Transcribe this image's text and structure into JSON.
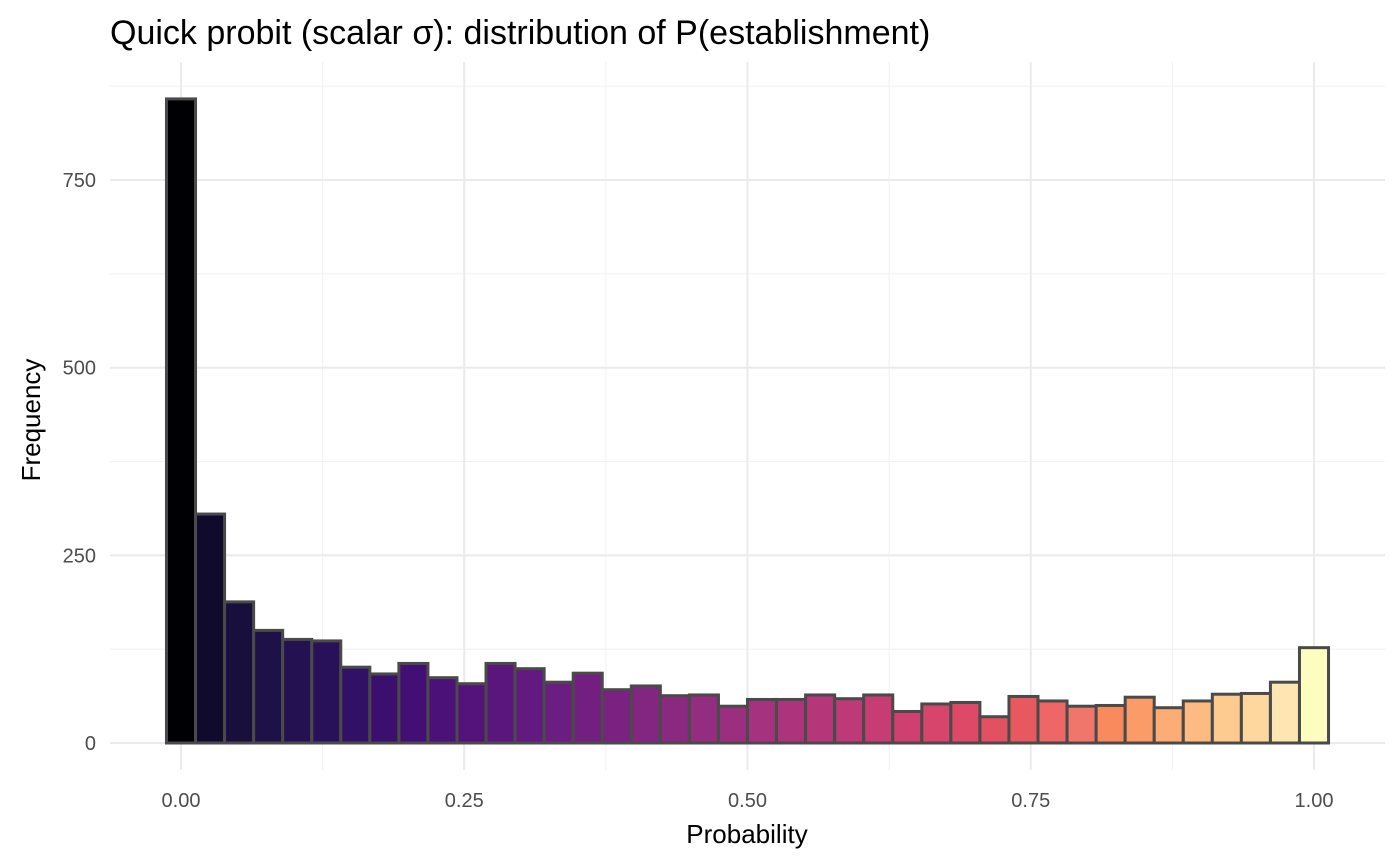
{
  "chart_data": {
    "type": "bar",
    "title": "Quick probit (scalar σ): distribution of P(establishment)",
    "xlabel": "Probability",
    "ylabel": "Frequency",
    "xlim": [
      -0.025,
      1.025
    ],
    "ylim": [
      0,
      875
    ],
    "x_ticks": [
      0,
      0.25,
      0.5,
      0.75,
      1.0
    ],
    "x_tick_labels": [
      "0.00",
      "0.25",
      "0.50",
      "0.75",
      "1.00"
    ],
    "y_ticks": [
      0,
      250,
      500,
      750
    ],
    "y_tick_labels": [
      "0",
      "250",
      "500",
      "750"
    ],
    "bin_width": 0.025641,
    "bin_centers": [
      0.0,
      0.025641,
      0.051282,
      0.076923,
      0.102564,
      0.128205,
      0.153846,
      0.179487,
      0.205128,
      0.230769,
      0.25641,
      0.282051,
      0.307692,
      0.333333,
      0.358974,
      0.384615,
      0.410256,
      0.435897,
      0.461538,
      0.487179,
      0.512821,
      0.538462,
      0.564103,
      0.589744,
      0.615385,
      0.641026,
      0.666667,
      0.692308,
      0.717949,
      0.74359,
      0.769231,
      0.794872,
      0.820513,
      0.846154,
      0.871795,
      0.897436,
      0.923077,
      0.948718,
      0.974359,
      1.0
    ],
    "values": [
      858,
      305,
      188,
      150,
      138,
      136,
      101,
      92,
      106,
      87,
      79,
      106,
      99,
      81,
      93,
      71,
      76,
      63,
      64,
      49,
      58,
      58,
      64,
      59,
      64,
      42,
      52,
      54,
      35,
      62,
      56,
      49,
      50,
      61,
      47,
      56,
      65,
      66,
      81,
      127
    ],
    "colors": [
      "#000004",
      "#100B2D",
      "#180F3D",
      "#1E1147",
      "#231151",
      "#29115A",
      "#311165",
      "#3A0F6E",
      "#430F75",
      "#4B1178",
      "#53137B",
      "#5B167E",
      "#631A80",
      "#6B1D81",
      "#721F81",
      "#7A2181",
      "#822681",
      "#8B2981",
      "#942C80",
      "#9C2E7F",
      "#A5327E",
      "#AD347C",
      "#B63779",
      "#BE3A77",
      "#C73D73",
      "#CF4071",
      "#D7446C",
      "#DE4968",
      "#E35061",
      "#E8585F",
      "#EF6666",
      "#F0766C",
      "#F88A5E",
      "#FB9B67",
      "#FCAC75",
      "#FDBB83",
      "#FDCA8F",
      "#FED79E",
      "#FEE5B1",
      "#FCFDBF"
    ],
    "grid": true,
    "legend": "none"
  }
}
